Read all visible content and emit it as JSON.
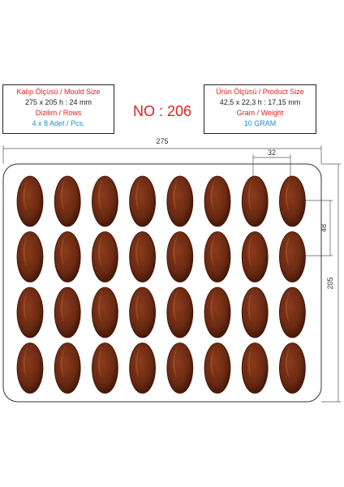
{
  "mould_box": {
    "line1": "Kalıp Ölçüsü / Mould Size",
    "line2": "275 x 205 h : 24 mm",
    "line3": "Dizilim / Rows",
    "line4": "4 x 8 Adet / Pcs."
  },
  "product_box": {
    "line1": "Ürün Ölçüsü / Product Size",
    "line2": "42,5 x 22,3 h : 17,15 mm",
    "line3": "Gram / Weight",
    "line4": "10 GRAM"
  },
  "model_number": "NO : 206",
  "dimensions": {
    "width": "275",
    "height": "205",
    "cavity_spacing_x": "32",
    "cavity_spacing_y": "48"
  },
  "grid": {
    "rows": 4,
    "columns": 8
  },
  "colors": {
    "chocolate": "#6b2a12",
    "chocolate_dark": "#3a1206",
    "highlight": "#a5532d"
  }
}
